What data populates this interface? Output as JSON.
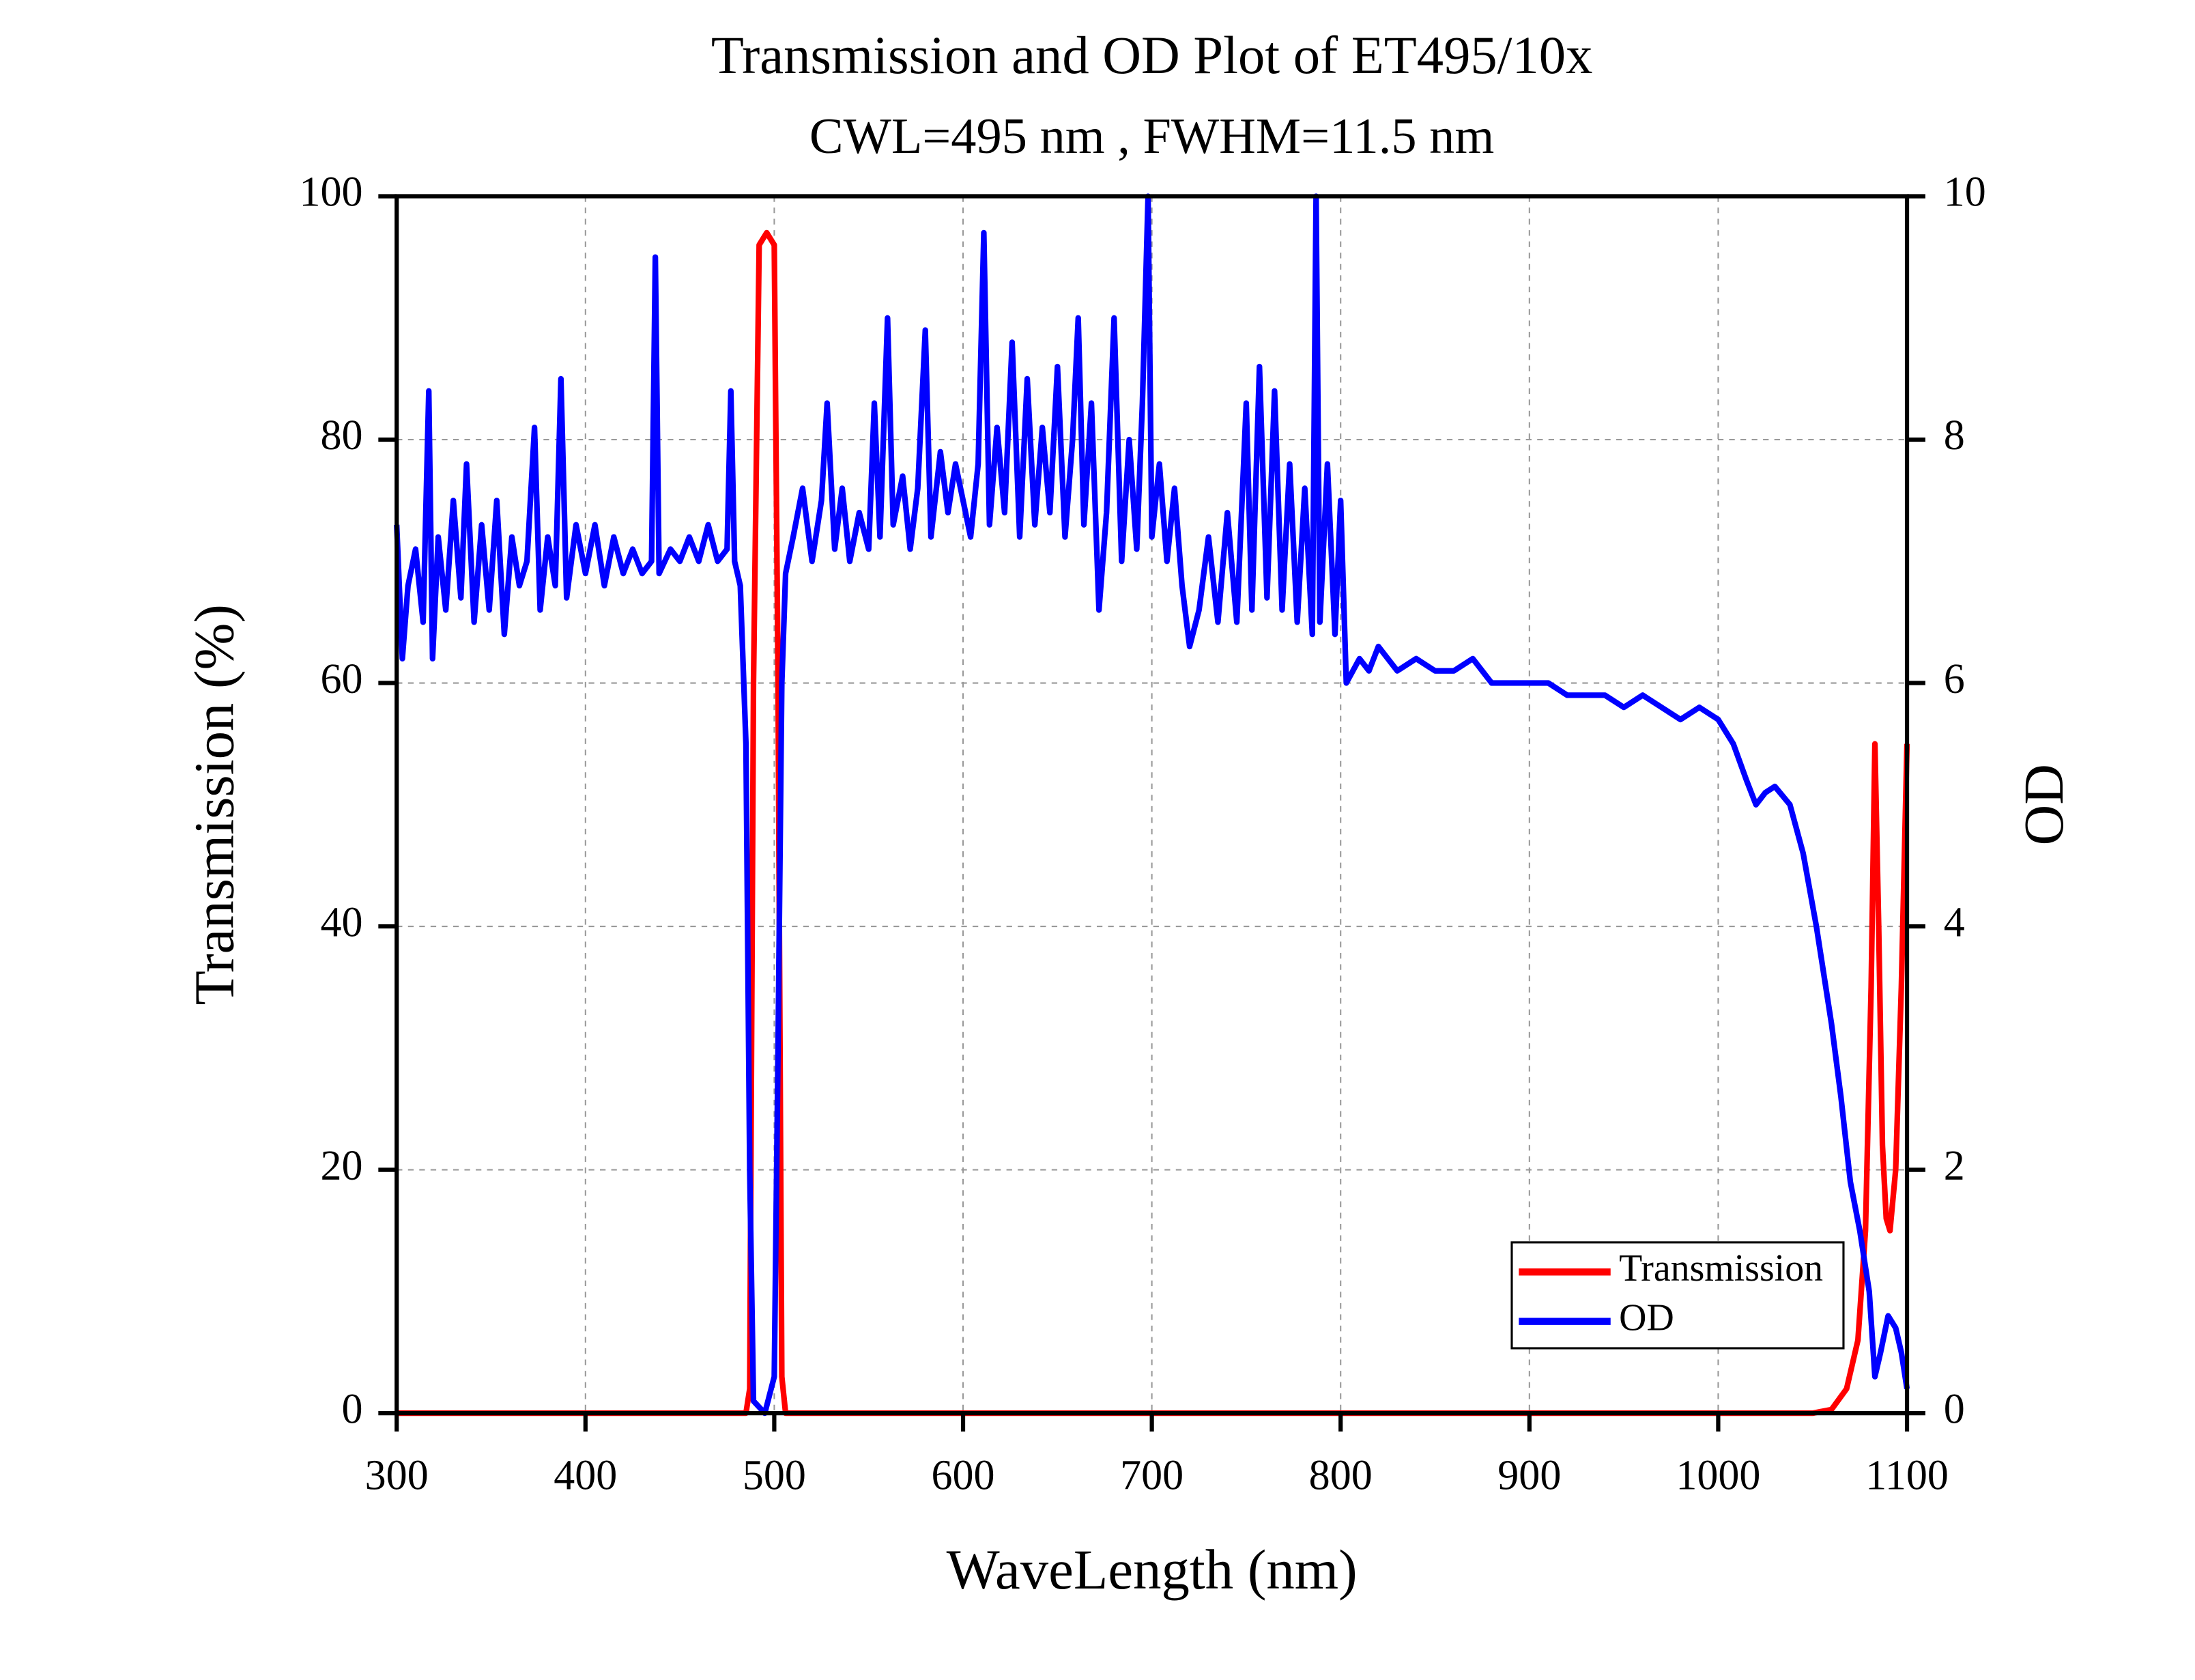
{
  "chart_data": {
    "type": "line",
    "title": "Transmission and OD Plot of ET495/10x",
    "subtitle": "CWL=495 nm , FWHM=11.5 nm",
    "x_label": "WaveLength (nm)",
    "y_label": "Transmission (%)",
    "y2_label": "OD",
    "xlim": [
      300,
      1100
    ],
    "xticks": [
      300,
      400,
      500,
      600,
      700,
      800,
      900,
      1000,
      1100
    ],
    "ylim": [
      0,
      100
    ],
    "yticks": [
      0,
      20,
      40,
      60,
      80,
      100
    ],
    "y2lim": [
      0,
      10
    ],
    "y2ticks": [
      0,
      2,
      4,
      6,
      8,
      10
    ],
    "grid": true,
    "legend": "lower right",
    "series": [
      {
        "name": "Transmission",
        "color": "#ff0000",
        "axis": "y",
        "x": [
          300,
          480,
          485,
          487,
          489,
          492,
          496,
          500,
          502,
          504,
          506,
          520,
          1050,
          1060,
          1068,
          1074,
          1078,
          1081,
          1083,
          1085,
          1087,
          1089,
          1091,
          1094,
          1097,
          1100
        ],
        "values": [
          0,
          0,
          0,
          2,
          60,
          96,
          97,
          96,
          60,
          3,
          0,
          0,
          0,
          0.3,
          2,
          6,
          15,
          35,
          55,
          40,
          22,
          16,
          15,
          20,
          35,
          55
        ]
      },
      {
        "name": "OD",
        "color": "#0000ff",
        "axis": "y2",
        "x": [
          300,
          303,
          306,
          310,
          314,
          317,
          319,
          322,
          326,
          330,
          334,
          337,
          341,
          345,
          349,
          353,
          357,
          361,
          365,
          369,
          373,
          376,
          380,
          384,
          387,
          390,
          395,
          400,
          405,
          410,
          415,
          420,
          425,
          430,
          435,
          437,
          439,
          445,
          450,
          455,
          460,
          465,
          470,
          475,
          477,
          479,
          482,
          485,
          487,
          489,
          495,
          500,
          502,
          504,
          506,
          510,
          515,
          520,
          525,
          528,
          532,
          536,
          540,
          545,
          550,
          553,
          556,
          560,
          563,
          568,
          572,
          576,
          580,
          583,
          588,
          592,
          596,
          600,
          604,
          608,
          611,
          614,
          618,
          622,
          626,
          630,
          634,
          638,
          642,
          646,
          650,
          654,
          658,
          661,
          664,
          668,
          672,
          676,
          680,
          684,
          688,
          692,
          695,
          698,
          700,
          704,
          708,
          712,
          716,
          720,
          725,
          730,
          735,
          740,
          745,
          750,
          753,
          757,
          761,
          765,
          769,
          773,
          777,
          781,
          785,
          787,
          789,
          793,
          797,
          800,
          803,
          810,
          815,
          820,
          830,
          840,
          850,
          860,
          870,
          880,
          890,
          900,
          910,
          920,
          930,
          940,
          950,
          960,
          970,
          980,
          990,
          1000,
          1008,
          1015,
          1020,
          1025,
          1030,
          1038,
          1045,
          1052,
          1060,
          1065,
          1070,
          1075,
          1080,
          1083,
          1086,
          1090,
          1094,
          1097,
          1100
        ],
        "values": [
          7.3,
          6.2,
          6.8,
          7.1,
          6.5,
          8.4,
          6.2,
          7.2,
          6.6,
          7.5,
          6.7,
          7.8,
          6.5,
          7.3,
          6.6,
          7.5,
          6.4,
          7.2,
          6.8,
          7.0,
          8.1,
          6.6,
          7.2,
          6.8,
          8.5,
          6.7,
          7.3,
          6.9,
          7.3,
          6.8,
          7.2,
          6.9,
          7.1,
          6.9,
          7.0,
          9.5,
          6.9,
          7.1,
          7.0,
          7.2,
          7.0,
          7.3,
          7.0,
          7.1,
          8.4,
          7.0,
          6.8,
          5.5,
          2.0,
          0.1,
          0,
          0.3,
          3.0,
          6.0,
          6.9,
          7.2,
          7.6,
          7.0,
          7.5,
          8.3,
          7.1,
          7.6,
          7.0,
          7.4,
          7.1,
          8.3,
          7.2,
          9.0,
          7.3,
          7.7,
          7.1,
          7.6,
          8.9,
          7.2,
          7.9,
          7.4,
          7.8,
          7.5,
          7.2,
          7.8,
          9.7,
          7.3,
          8.1,
          7.4,
          8.8,
          7.2,
          8.5,
          7.3,
          8.1,
          7.4,
          8.6,
          7.2,
          8.0,
          9.0,
          7.3,
          8.3,
          6.6,
          7.4,
          9.0,
          7.0,
          8.0,
          7.1,
          8.3,
          10,
          7.2,
          7.8,
          7.0,
          7.6,
          6.8,
          6.3,
          6.6,
          7.2,
          6.5,
          7.4,
          6.5,
          8.3,
          6.6,
          8.6,
          6.7,
          8.4,
          6.6,
          7.8,
          6.5,
          7.6,
          6.4,
          10,
          6.5,
          7.8,
          6.4,
          7.5,
          6.0,
          6.2,
          6.1,
          6.3,
          6.1,
          6.2,
          6.1,
          6.1,
          6.2,
          6.0,
          6.0,
          6.0,
          6.0,
          5.9,
          5.9,
          5.9,
          5.8,
          5.9,
          5.8,
          5.7,
          5.8,
          5.7,
          5.5,
          5.2,
          5.0,
          5.1,
          5.15,
          5.0,
          4.6,
          4.0,
          3.2,
          2.6,
          1.9,
          1.5,
          1.0,
          0.3,
          0.5,
          0.8,
          0.7,
          0.5,
          0.2
        ]
      }
    ]
  }
}
